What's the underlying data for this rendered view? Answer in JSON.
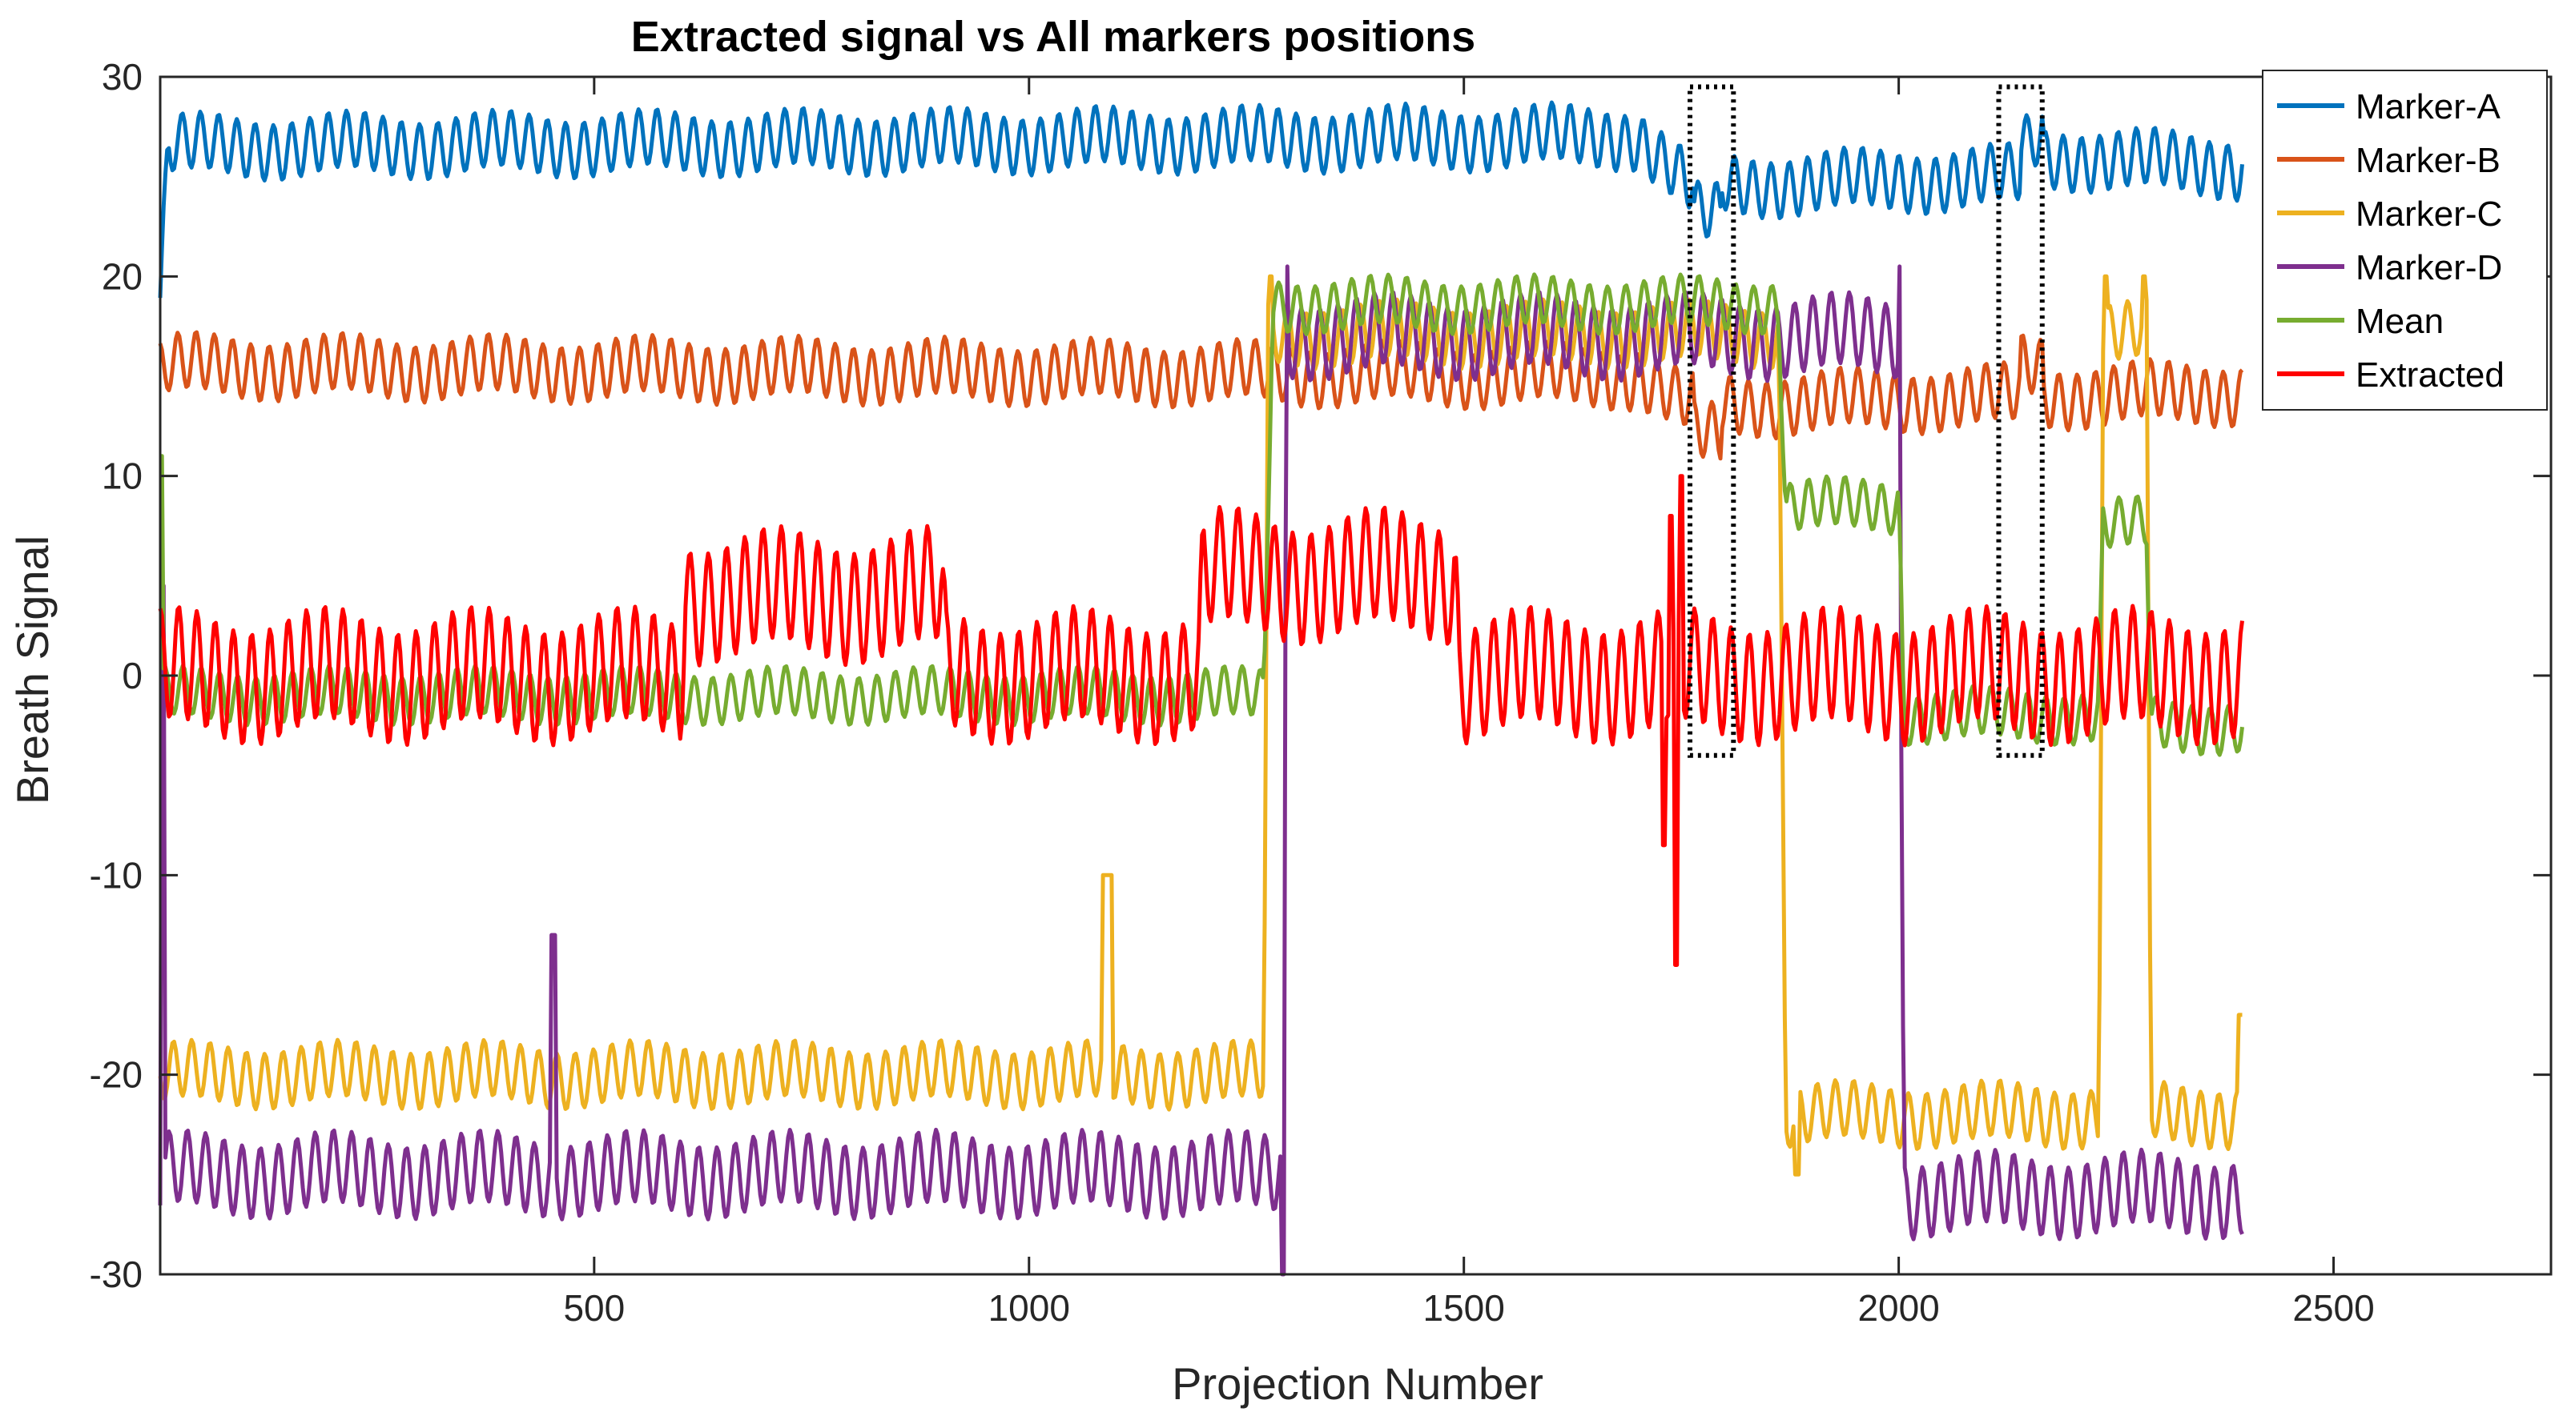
{
  "chart_data": {
    "type": "line",
    "title": "Extracted signal vs All markers positions",
    "xlabel": "Projection Number",
    "ylabel": "Breath Signal",
    "xlim": [
      1,
      2750
    ],
    "ylim": [
      -30,
      30
    ],
    "x_ticks": [
      500,
      1000,
      1500,
      2000,
      2500
    ],
    "x_tick_labels": [
      "500",
      "1000",
      "1500",
      "2000",
      "2500"
    ],
    "y_ticks": [
      -30,
      -20,
      -10,
      0,
      10,
      20,
      30
    ],
    "y_tick_labels": [
      "-30",
      "-20",
      "-10",
      "0",
      "10",
      "20",
      "30"
    ],
    "grid": false,
    "legend_position": "top-right",
    "breath_period": 21,
    "series": [
      {
        "name": "Marker-A",
        "color": "#0072BD",
        "amplitude": 1.4,
        "offset_ramps": [
          [
            1,
            18.5
          ],
          [
            10,
            26.5
          ],
          [
            1700,
            27
          ],
          [
            1760,
            24.5
          ],
          [
            2150,
            25
          ],
          [
            2170,
            26
          ],
          [
            2395,
            25.5
          ]
        ],
        "extra": [
          [
            1765,
            1795,
            -1.5
          ],
          [
            2140,
            2165,
            1.5
          ]
        ]
      },
      {
        "name": "Marker-B",
        "color": "#D95319",
        "amplitude": 1.4,
        "offset_ramps": [
          [
            1,
            15.2
          ],
          [
            10,
            15.5
          ],
          [
            1700,
            15
          ],
          [
            1760,
            13.5
          ],
          [
            2150,
            14
          ],
          [
            2170,
            14
          ],
          [
            2395,
            14.2
          ]
        ],
        "extra": [
          [
            1765,
            1795,
            -1.5
          ],
          [
            2140,
            2165,
            1.5
          ]
        ]
      },
      {
        "name": "Marker-C",
        "color": "#EDB120",
        "amplitude": 1.4,
        "segments": [
          [
            1,
            1270,
            -20
          ],
          [
            1275,
            1862,
            17.1
          ],
          [
            1870,
            2230,
            -22
          ],
          [
            2235,
            2285,
            17.1
          ],
          [
            2290,
            2395,
            -22
          ]
        ],
        "spikes": [
          [
            1085,
            1095,
            -10
          ],
          [
            1277,
            1280,
            20
          ],
          [
            1880,
            1885,
            -25
          ],
          [
            2237,
            2240,
            20
          ],
          [
            2280,
            2283,
            20
          ],
          [
            2390,
            2395,
            -17
          ]
        ]
      },
      {
        "name": "Marker-D",
        "color": "#7E2F8E",
        "amplitude": 1.8,
        "segments": [
          [
            1,
            1290,
            -25
          ],
          [
            1297,
            2000,
            17
          ],
          [
            2006,
            2395,
            -26
          ]
        ],
        "spikes": [
          [
            2,
            6,
            4.5
          ],
          [
            450,
            456,
            -13
          ],
          [
            1290,
            1294,
            -30
          ],
          [
            1296,
            1298,
            20.5
          ],
          [
            2000,
            2002,
            20.5
          ]
        ]
      },
      {
        "name": "Mean",
        "color": "#77AC30",
        "amplitude": 1.2,
        "segments": [
          [
            1,
            1270,
            -1
          ],
          [
            1280,
            1862,
            18.6
          ],
          [
            1870,
            2000,
            8.5
          ],
          [
            2006,
            2230,
            -2
          ],
          [
            2235,
            2285,
            7.5
          ],
          [
            2290,
            2395,
            -2.5
          ]
        ],
        "spikes": [
          [
            1,
            3,
            11
          ]
        ]
      },
      {
        "name": "Extracted",
        "color": "#FF0000",
        "amplitude": 2.8,
        "segments": [
          [
            1,
            600,
            0
          ],
          [
            605,
            900,
            4
          ],
          [
            905,
            1195,
            0
          ],
          [
            1200,
            1490,
            5
          ],
          [
            1495,
            1720,
            0
          ],
          [
            1755,
            2395,
            0
          ]
        ],
        "spikes": [
          [
            1728,
            1732,
            -8.5
          ],
          [
            1736,
            1740,
            8
          ],
          [
            1742,
            1746,
            -14.5
          ],
          [
            1748,
            1752,
            10
          ]
        ]
      }
    ],
    "annotation_boxes": [
      {
        "x_range": [
          1760,
          1810
        ],
        "y_range": [
          -4,
          29.5
        ],
        "style": "dotted"
      },
      {
        "x_range": [
          2115,
          2165
        ],
        "y_range": [
          -4,
          29.5
        ],
        "style": "dotted"
      }
    ]
  }
}
